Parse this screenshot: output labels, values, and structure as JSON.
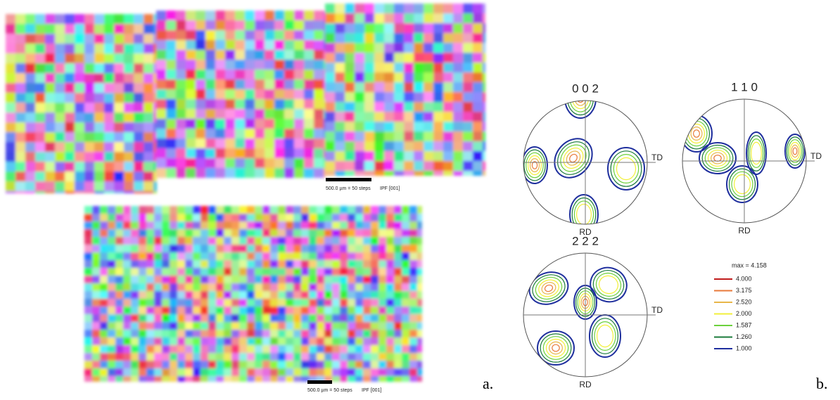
{
  "figure": {
    "panel_a": {
      "label": "a.",
      "map_top": {
        "scale_text": "500.0 µm = 50 steps",
        "ipf_text": "IPF [001]"
      },
      "map_bottom": {
        "scale_text": "500.0 µm = 50 steps",
        "ipf_text": "IPF [001]"
      }
    },
    "panel_b": {
      "label": "b.",
      "pole_figures": [
        {
          "title": "0 0 2",
          "td": "TD",
          "rd": "RD"
        },
        {
          "title": "1 1 0",
          "td": "TD",
          "rd": "RD"
        },
        {
          "title": "2 2 2",
          "td": "TD",
          "rd": "RD"
        }
      ],
      "legend": {
        "max": "max = 4.158",
        "levels": [
          "4.000",
          "3.175",
          "2.520",
          "2.000",
          "1.587",
          "1.260",
          "1.000"
        ]
      }
    }
  }
}
